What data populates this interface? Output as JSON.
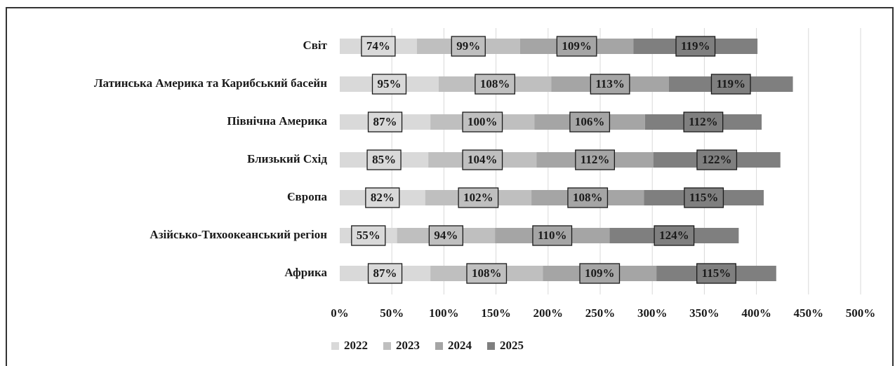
{
  "chart_data": {
    "type": "stacked-barh",
    "categories": [
      "Світ",
      "Латинська Америка та Карибський басейн",
      "Північна Америка",
      "Близький Схід",
      "Європа",
      "Азійсько-Тихоокеанський регіон",
      "Африка"
    ],
    "series": [
      {
        "name": "2022",
        "color": "#d9d9d9",
        "values": [
          74,
          95,
          87,
          85,
          82,
          55,
          87
        ],
        "value_labels": [
          "74%",
          "95%",
          "87%",
          "85%",
          "82%",
          "55%",
          "87%"
        ]
      },
      {
        "name": "2023",
        "color": "#bfbfbf",
        "values": [
          99,
          108,
          100,
          104,
          102,
          94,
          108
        ],
        "value_labels": [
          "99%",
          "108%",
          "100%",
          "104%",
          "102%",
          "94%",
          "108%"
        ]
      },
      {
        "name": "2024",
        "color": "#a5a5a5",
        "values": [
          109,
          113,
          106,
          112,
          108,
          110,
          109
        ],
        "value_labels": [
          "109%",
          "113%",
          "106%",
          "112%",
          "108%",
          "110%",
          "109%"
        ]
      },
      {
        "name": "2025",
        "color": "#7f7f7f",
        "values": [
          119,
          119,
          112,
          122,
          115,
          124,
          115
        ],
        "value_labels": [
          "119%",
          "119%",
          "112%",
          "122%",
          "115%",
          "124%",
          "115%"
        ]
      }
    ],
    "xlim": [
      0,
      500
    ],
    "xticks": [
      {
        "value": 0,
        "label": "0%"
      },
      {
        "value": 50,
        "label": "50%"
      },
      {
        "value": 100,
        "label": "100%"
      },
      {
        "value": 150,
        "label": "150%"
      },
      {
        "value": 200,
        "label": "200%"
      },
      {
        "value": 250,
        "label": "250%"
      },
      {
        "value": 300,
        "label": "300%"
      },
      {
        "value": 350,
        "label": "350%"
      },
      {
        "value": 400,
        "label": "400%"
      },
      {
        "value": 450,
        "label": "450%"
      },
      {
        "value": 500,
        "label": "500%"
      }
    ],
    "grid": true,
    "legend": "bottom"
  }
}
